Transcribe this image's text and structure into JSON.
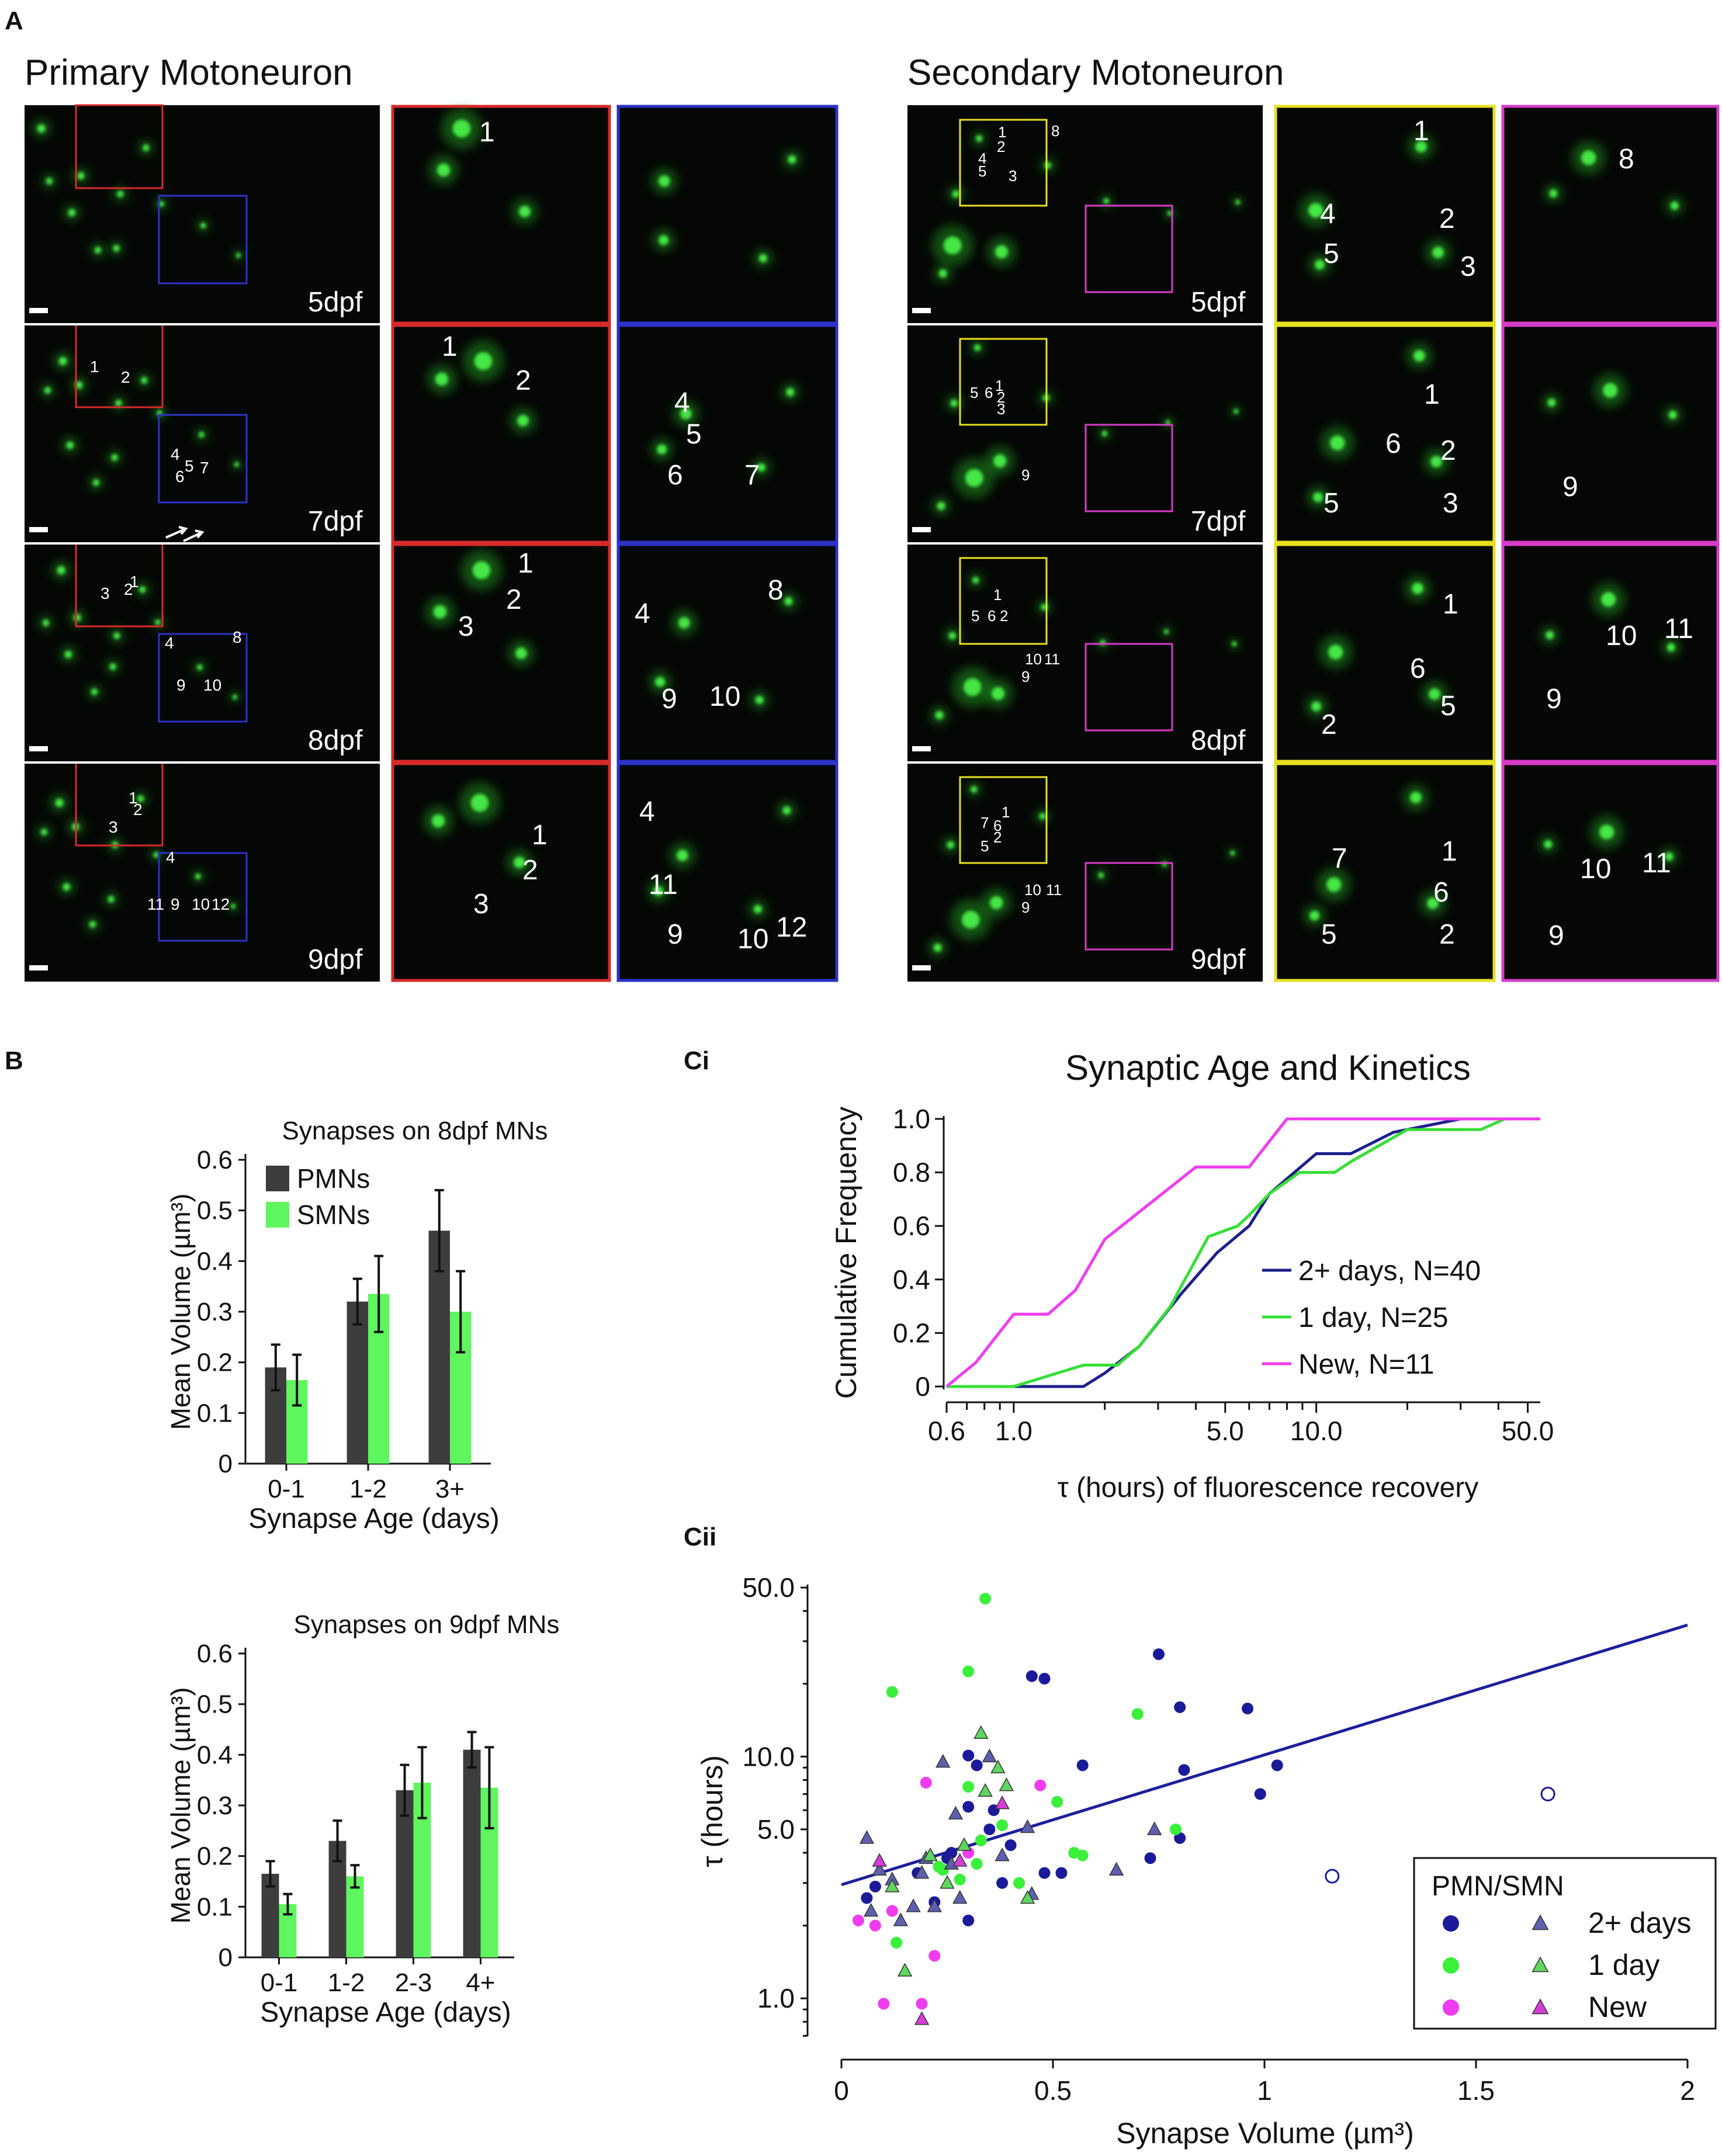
{
  "panel_labels": {
    "a": "A",
    "b": "B",
    "ci": "Ci",
    "cii": "Cii"
  },
  "panel_a": {
    "primary_title": "Primary Motoneuron",
    "secondary_title": "Secondary Motoneuron",
    "rows": [
      {
        "stage": "5dpf",
        "pmn_overview": [
          "",
          ""
        ],
        "pmn_red": [
          "1"
        ],
        "pmn_blue": [],
        "smn_overview": [
          "1",
          "2",
          "4",
          "5",
          "3",
          "8"
        ],
        "smn_yellow": [
          "1",
          "4",
          "2",
          "5",
          "3"
        ],
        "smn_magenta": [
          "8"
        ]
      },
      {
        "stage": "7dpf",
        "pmn_overview": [
          "1",
          "2",
          "4",
          "5",
          "6",
          "7"
        ],
        "pmn_red": [
          "1",
          "2"
        ],
        "pmn_blue": [
          "4",
          "5",
          "6",
          "7"
        ],
        "smn_overview": [
          "1",
          "5",
          "6",
          "2",
          "3",
          "9"
        ],
        "smn_yellow": [
          "1",
          "6",
          "2",
          "5",
          "3"
        ],
        "smn_magenta": [
          "9"
        ]
      },
      {
        "stage": "8dpf",
        "pmn_overview": [
          "1",
          "2",
          "3",
          "4",
          "8",
          "9",
          "10"
        ],
        "pmn_red": [
          "1",
          "2",
          "3"
        ],
        "pmn_blue": [
          "4",
          "8",
          "9",
          "10"
        ],
        "smn_overview": [
          "1",
          "5",
          "6",
          "2",
          "10",
          "11",
          "9"
        ],
        "smn_yellow": [
          "1",
          "6",
          "5",
          "2"
        ],
        "smn_magenta": [
          "10",
          "11",
          "9"
        ]
      },
      {
        "stage": "9dpf",
        "pmn_overview": [
          "1",
          "2",
          "3",
          "4",
          "11",
          "9",
          "10",
          "12"
        ],
        "pmn_red": [
          "1",
          "2",
          "3"
        ],
        "pmn_blue": [
          "4",
          "11",
          "9",
          "10",
          "12"
        ],
        "smn_overview": [
          "1",
          "7",
          "6",
          "5",
          "2",
          "10",
          "11",
          "9"
        ],
        "smn_yellow": [
          "7",
          "1",
          "6",
          "5",
          "2"
        ],
        "smn_magenta": [
          "10",
          "11",
          "9"
        ]
      }
    ],
    "colors": {
      "red": "#d82a2a",
      "blue": "#2d32c8",
      "yellow": "#e8e020",
      "magenta": "#d63cc8",
      "signal": "#45e645"
    }
  },
  "chart_data": [
    {
      "id": "b_8dpf",
      "type": "bar",
      "title": "Synapses on 8dpf MNs",
      "xlabel": "Synapse Age (days)",
      "ylabel": "Mean Volume (µm³)",
      "categories": [
        "0-1",
        "1-2",
        "3+"
      ],
      "yticks": [
        "0",
        "0.1",
        "0.2",
        "0.3",
        "0.4",
        "0.5",
        "0.6"
      ],
      "ylim": [
        0,
        0.6
      ],
      "series": [
        {
          "name": "PMNs",
          "color": "#3d3d3d",
          "values": [
            0.19,
            0.32,
            0.46
          ],
          "errors": [
            0.045,
            0.045,
            0.08
          ]
        },
        {
          "name": "SMNs",
          "color": "#5ef55e",
          "values": [
            0.165,
            0.335,
            0.3
          ],
          "errors": [
            0.05,
            0.075,
            0.08
          ]
        }
      ],
      "legend": "top-left"
    },
    {
      "id": "b_9dpf",
      "type": "bar",
      "title": "Synapses on 9dpf MNs",
      "xlabel": "Synapse Age (days)",
      "ylabel": "Mean Volume (µm³)",
      "categories": [
        "0-1",
        "1-2",
        "2-3",
        "4+"
      ],
      "yticks": [
        "0",
        "0.1",
        "0.2",
        "0.3",
        "0.4",
        "0.5",
        "0.6"
      ],
      "ylim": [
        0,
        0.6
      ],
      "series": [
        {
          "name": "PMNs",
          "color": "#3d3d3d",
          "values": [
            0.165,
            0.23,
            0.33,
            0.41
          ],
          "errors": [
            0.025,
            0.04,
            0.05,
            0.035
          ]
        },
        {
          "name": "SMNs",
          "color": "#5ef55e",
          "values": [
            0.105,
            0.16,
            0.345,
            0.335
          ],
          "errors": [
            0.02,
            0.022,
            0.07,
            0.08
          ]
        }
      ]
    },
    {
      "id": "ci",
      "type": "line",
      "title": "Synaptic Age and Kinetics",
      "xlabel": "τ (hours) of fluorescence recovery",
      "ylabel": "Cumulative Frequency",
      "xscale": "log",
      "xlim": [
        0.6,
        55
      ],
      "ylim": [
        0,
        1.0
      ],
      "xticks": [
        "0.6",
        "1.0",
        "5.0",
        "10.0",
        "50.0"
      ],
      "yticks": [
        "0",
        "0.2",
        "0.4",
        "0.6",
        "0.8",
        "1.0"
      ],
      "legend": "center-right",
      "series": [
        {
          "name": "2+ days, N=40",
          "color": "#1d1f8c",
          "x": [
            0.6,
            1.0,
            1.7,
            2.0,
            2.6,
            3.6,
            4.7,
            6.0,
            7.0,
            10.0,
            13.0,
            18.0,
            30.0,
            50.0,
            55.0
          ],
          "y": [
            0.0,
            0.0,
            0.0,
            0.05,
            0.15,
            0.35,
            0.5,
            0.6,
            0.72,
            0.87,
            0.87,
            0.95,
            1.0,
            1.0,
            1.0
          ]
        },
        {
          "name": "1 day, N=25",
          "color": "#35e035",
          "x": [
            0.6,
            1.0,
            1.7,
            2.2,
            2.6,
            3.3,
            3.6,
            4.4,
            5.5,
            6.0,
            7.0,
            8.8,
            10.0,
            11.5,
            13.0,
            20.0,
            25.0,
            35.0,
            42.0,
            55.0
          ],
          "y": [
            0.0,
            0.0,
            0.08,
            0.08,
            0.15,
            0.3,
            0.38,
            0.56,
            0.6,
            0.64,
            0.72,
            0.8,
            0.8,
            0.8,
            0.84,
            0.96,
            0.96,
            0.96,
            1.0,
            1.0
          ]
        },
        {
          "name": "New, N=11",
          "color": "#f03cf0",
          "x": [
            0.6,
            0.75,
            1.0,
            1.3,
            1.6,
            2.0,
            4.0,
            6.0,
            8.0,
            55.0
          ],
          "y": [
            0.0,
            0.09,
            0.27,
            0.27,
            0.36,
            0.55,
            0.82,
            0.82,
            1.0,
            1.0
          ]
        }
      ]
    },
    {
      "id": "cii",
      "type": "scatter",
      "xlabel": "Synapse Volume (µm³)",
      "ylabel": "τ (hours)",
      "xlim": [
        0,
        2
      ],
      "ylim": [
        0.6,
        55
      ],
      "yscale": "log",
      "xticks": [
        "0",
        "0.5",
        "1",
        "1.5",
        "2"
      ],
      "yticks": [
        "1.0",
        "5.0",
        "10.0",
        "50.0"
      ],
      "legend_title": "PMN/SMN",
      "legend_labels": [
        "2+ days",
        "1 day",
        "New"
      ],
      "fit_line": {
        "color": "#1d1f9c",
        "x": [
          0.0,
          2.0
        ],
        "y": [
          2.95,
          35.0
        ]
      },
      "series": [
        {
          "name": "PMN 2+ days",
          "marker": "circle",
          "color": "#1a1a9a",
          "points": [
            [
              0.06,
              2.6
            ],
            [
              0.08,
              2.9
            ],
            [
              0.18,
              3.3
            ],
            [
              0.22,
              2.5
            ],
            [
              0.25,
              3.8
            ],
            [
              0.3,
              2.1
            ],
            [
              0.3,
              10.1
            ],
            [
              0.32,
              9.2
            ],
            [
              0.35,
              5.0
            ],
            [
              0.38,
              3.0
            ],
            [
              0.4,
              4.3
            ],
            [
              0.45,
              21.5
            ],
            [
              0.48,
              21.0
            ],
            [
              0.48,
              3.3
            ],
            [
              0.52,
              3.3
            ],
            [
              0.57,
              9.2
            ],
            [
              0.73,
              3.8
            ],
            [
              0.75,
              26.5
            ],
            [
              0.8,
              16.0
            ],
            [
              0.8,
              4.6
            ],
            [
              0.81,
              8.8
            ],
            [
              0.96,
              15.8
            ],
            [
              0.99,
              7.0
            ],
            [
              1.03,
              9.2
            ],
            [
              0.3,
              6.2
            ],
            [
              0.36,
              6.0
            ],
            [
              0.26,
              4.0
            ]
          ]
        },
        {
          "name": "PMN 2+ days outlier",
          "marker": "open-circle",
          "color": "#1a1a9a",
          "points": [
            [
              1.16,
              3.2
            ],
            [
              1.67,
              7.0
            ]
          ]
        },
        {
          "name": "PMN 1 day",
          "marker": "circle",
          "color": "#3af03a",
          "points": [
            [
              0.12,
              18.5
            ],
            [
              0.13,
              1.7
            ],
            [
              0.23,
              3.5
            ],
            [
              0.28,
              3.1
            ],
            [
              0.3,
              22.5
            ],
            [
              0.3,
              7.5
            ],
            [
              0.32,
              3.6
            ],
            [
              0.33,
              4.5
            ],
            [
              0.34,
              45.0
            ],
            [
              0.38,
              5.2
            ],
            [
              0.42,
              3.0
            ],
            [
              0.51,
              6.5
            ],
            [
              0.55,
              4.0
            ],
            [
              0.57,
              3.9
            ],
            [
              0.7,
              15.0
            ],
            [
              0.79,
              5.0
            ],
            [
              0.24,
              3.4
            ]
          ]
        },
        {
          "name": "PMN New",
          "marker": "circle",
          "color": "#f03cf0",
          "points": [
            [
              0.04,
              2.1
            ],
            [
              0.08,
              2.0
            ],
            [
              0.1,
              0.95
            ],
            [
              0.12,
              2.3
            ],
            [
              0.19,
              0.95
            ],
            [
              0.2,
              7.8
            ],
            [
              0.22,
              1.5
            ],
            [
              0.3,
              4.0
            ],
            [
              0.47,
              7.6
            ]
          ]
        },
        {
          "name": "SMN 2+ days",
          "marker": "triangle",
          "color": "#5f5fb0",
          "points": [
            [
              0.06,
              4.6
            ],
            [
              0.07,
              2.3
            ],
            [
              0.09,
              3.4
            ],
            [
              0.12,
              3.1
            ],
            [
              0.14,
              2.1
            ],
            [
              0.17,
              2.4
            ],
            [
              0.19,
              3.3
            ],
            [
              0.2,
              3.8
            ],
            [
              0.22,
              2.4
            ],
            [
              0.24,
              9.5
            ],
            [
              0.26,
              3.6
            ],
            [
              0.27,
              5.8
            ],
            [
              0.35,
              10.0
            ],
            [
              0.38,
              3.9
            ],
            [
              0.44,
              5.1
            ],
            [
              0.45,
              2.7
            ],
            [
              0.65,
              3.4
            ],
            [
              0.74,
              5.0
            ],
            [
              0.28,
              2.6
            ]
          ]
        },
        {
          "name": "SMN 1 day",
          "marker": "triangle",
          "color": "#5fd65f",
          "points": [
            [
              0.12,
              2.9
            ],
            [
              0.15,
              1.3
            ],
            [
              0.21,
              3.9
            ],
            [
              0.25,
              3.0
            ],
            [
              0.29,
              4.3
            ],
            [
              0.33,
              12.5
            ],
            [
              0.34,
              7.2
            ],
            [
              0.37,
              9.0
            ],
            [
              0.39,
              7.6
            ],
            [
              0.44,
              2.6
            ]
          ]
        },
        {
          "name": "SMN New",
          "marker": "triangle",
          "color": "#d83cd8",
          "points": [
            [
              0.09,
              3.7
            ],
            [
              0.19,
              0.82
            ],
            [
              0.28,
              3.7
            ],
            [
              0.38,
              6.4
            ]
          ]
        }
      ]
    }
  ]
}
